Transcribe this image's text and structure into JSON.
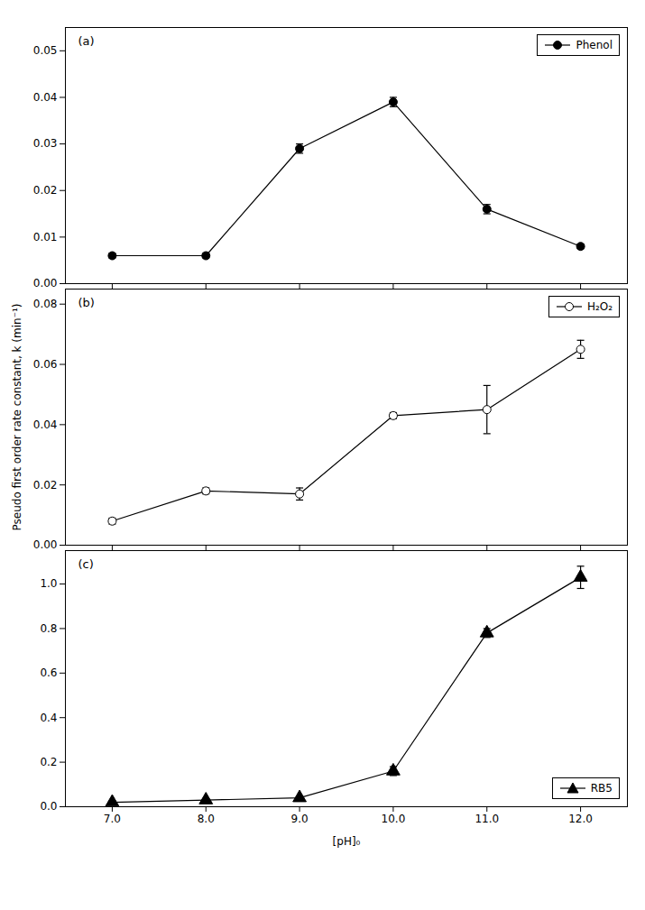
{
  "chart_data": [
    {
      "type": "line",
      "x": [
        7.0,
        8.0,
        9.0,
        10.0,
        11.0,
        12.0
      ],
      "xlim": [
        6.5,
        12.5
      ],
      "xticks": [
        7.0,
        8.0,
        9.0,
        10.0,
        11.0,
        12.0
      ],
      "ylim": [
        0.0,
        0.055
      ],
      "yticks": [
        {
          "value": 0.0,
          "label": "0.00"
        },
        0.01,
        0.02,
        0.03,
        0.04,
        0.05
      ],
      "tick_labels": "y",
      "legend": "upper right",
      "annotations": [
        "(a)"
      ],
      "series": [
        {
          "name": "Phenol",
          "color": "black",
          "marker": "circle",
          "line_style": "solid",
          "values": [
            0.006,
            0.006,
            0.029,
            0.039,
            0.016,
            0.008
          ],
          "errors": [
            0.0005,
            0.0005,
            0.001,
            0.001,
            0.001,
            0.0005
          ]
        }
      ]
    },
    {
      "type": "line",
      "x": [
        7.0,
        8.0,
        9.0,
        10.0,
        11.0,
        12.0
      ],
      "xlim": [
        6.5,
        12.5
      ],
      "xticks": [
        7.0,
        8.0,
        9.0,
        10.0,
        11.0,
        12.0
      ],
      "ylim": [
        0.0,
        0.085
      ],
      "yticks": [
        {
          "value": 0.0,
          "label": "0.00"
        },
        0.02,
        0.04,
        0.06,
        0.08
      ],
      "ylabel": "Pseudo first order rate constant, k (min⁻¹)",
      "tick_labels": "y",
      "legend": "upper right",
      "annotations": [
        "(b)"
      ],
      "series": [
        {
          "name": "H₂O₂",
          "color": "black",
          "marker": "open_circle",
          "line_style": "solid",
          "values": [
            0.008,
            0.018,
            0.017,
            0.043,
            0.045,
            0.065
          ],
          "errors": [
            0.001,
            0.001,
            0.002,
            0.001,
            0.008,
            0.003
          ]
        }
      ]
    },
    {
      "type": "line",
      "x": [
        7.0,
        8.0,
        9.0,
        10.0,
        11.0,
        12.0
      ],
      "xlim": [
        6.5,
        12.5
      ],
      "xticks": [
        {
          "value": 7.0,
          "label": "7.0"
        },
        {
          "value": 8.0,
          "label": "8.0"
        },
        {
          "value": 9.0,
          "label": "9.0"
        },
        {
          "value": 10.0,
          "label": "10.0"
        },
        {
          "value": 11.0,
          "label": "11.0"
        },
        {
          "value": 12.0,
          "label": "12.0"
        }
      ],
      "xlabel": "[pH]₀",
      "ylim": [
        0.0,
        1.15
      ],
      "yticks": [
        {
          "value": 0.0,
          "label": "0.0"
        },
        0.2,
        0.4,
        0.6,
        0.8,
        {
          "value": 1.0,
          "label": "1.0"
        }
      ],
      "legend": "lower right",
      "annotations": [
        "(c)"
      ],
      "series": [
        {
          "name": "RB5",
          "color": "black",
          "marker": "triangle",
          "line_style": "solid",
          "values": [
            0.02,
            0.03,
            0.04,
            0.16,
            0.78,
            1.03
          ],
          "errors": [
            0.005,
            0.005,
            0.005,
            0.02,
            0.02,
            0.05
          ]
        }
      ]
    }
  ]
}
